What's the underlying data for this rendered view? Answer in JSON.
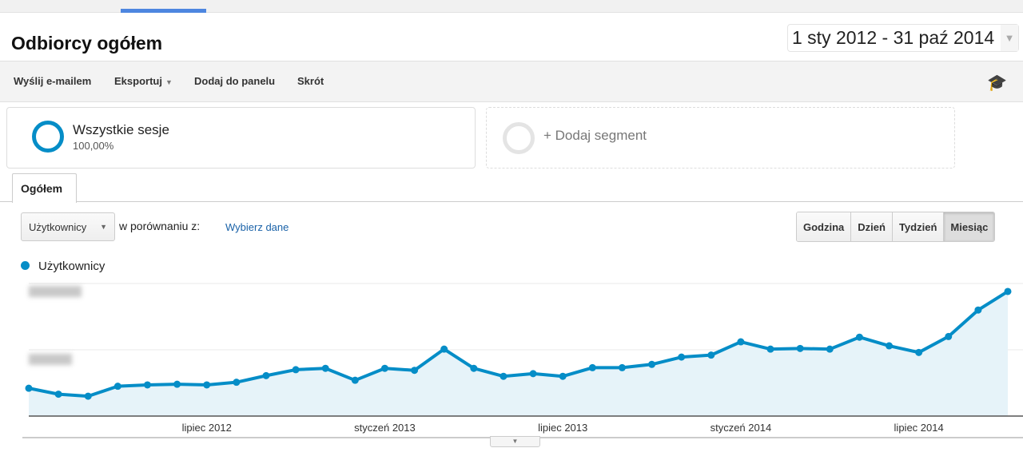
{
  "header": {
    "title": "Odbiorcy ogółem",
    "date_range": "1 sty 2012 - 31 paź 2014"
  },
  "toolbar": {
    "email": "Wyślij e-mailem",
    "export": "Eksportuj",
    "add_dashboard": "Dodaj do panelu",
    "shortcut": "Skrót",
    "icons": [
      "chevron-down-icon",
      "graduation-cap-icon"
    ]
  },
  "segments": {
    "all": {
      "name": "Wszystkie sesje",
      "percent": "100,00%"
    },
    "add": "+ Dodaj segment"
  },
  "tabs": [
    {
      "label": "Ogółem",
      "active": true
    }
  ],
  "controls": {
    "metric": "Użytkownicy",
    "compare_label": "w porównaniu z:",
    "choose": "Wybierz dane",
    "granularity": [
      {
        "label": "Godzina"
      },
      {
        "label": "Dzień"
      },
      {
        "label": "Tydzień"
      },
      {
        "label": "Miesiąc",
        "selected": true
      }
    ]
  },
  "colors": {
    "series": "#058dc7",
    "fill": "#e6f3f9",
    "tab_accent": "#4d86e0"
  },
  "chart_data": {
    "type": "area",
    "series": [
      {
        "name": "Użytkownicy",
        "values": [
          0.42,
          0.33,
          0.3,
          0.45,
          0.47,
          0.48,
          0.47,
          0.51,
          0.61,
          0.7,
          0.72,
          0.54,
          0.72,
          0.69,
          1.01,
          0.72,
          0.6,
          0.64,
          0.6,
          0.73,
          0.73,
          0.78,
          0.89,
          0.92,
          1.12,
          1.01,
          1.02,
          1.01,
          1.19,
          1.06,
          0.96,
          1.2,
          1.6,
          1.88
        ]
      }
    ],
    "x": [
      "2012-01",
      "2012-02",
      "2012-03",
      "2012-04",
      "2012-05",
      "2012-06",
      "2012-07",
      "2012-08",
      "2012-09",
      "2012-10",
      "2012-11",
      "2012-12",
      "2013-01",
      "2013-02",
      "2013-03",
      "2013-04",
      "2013-05",
      "2013-06",
      "2013-07",
      "2013-08",
      "2013-09",
      "2013-10",
      "2013-11",
      "2013-12",
      "2014-01",
      "2014-02",
      "2014-03",
      "2014-04",
      "2014-05",
      "2014-06",
      "2014-07",
      "2014-08",
      "2014-09",
      "2014-10"
    ],
    "x_ticks": [
      {
        "index": 6,
        "label": "lipiec 2012"
      },
      {
        "index": 12,
        "label": "styczeń 2013"
      },
      {
        "index": 18,
        "label": "lipiec 2013"
      },
      {
        "index": 24,
        "label": "styczeń 2014"
      },
      {
        "index": 30,
        "label": "lipiec 2014"
      }
    ],
    "ylim": [
      0,
      2
    ],
    "y_tick_labels": "blurred",
    "grid": true,
    "legend": "top-left"
  }
}
